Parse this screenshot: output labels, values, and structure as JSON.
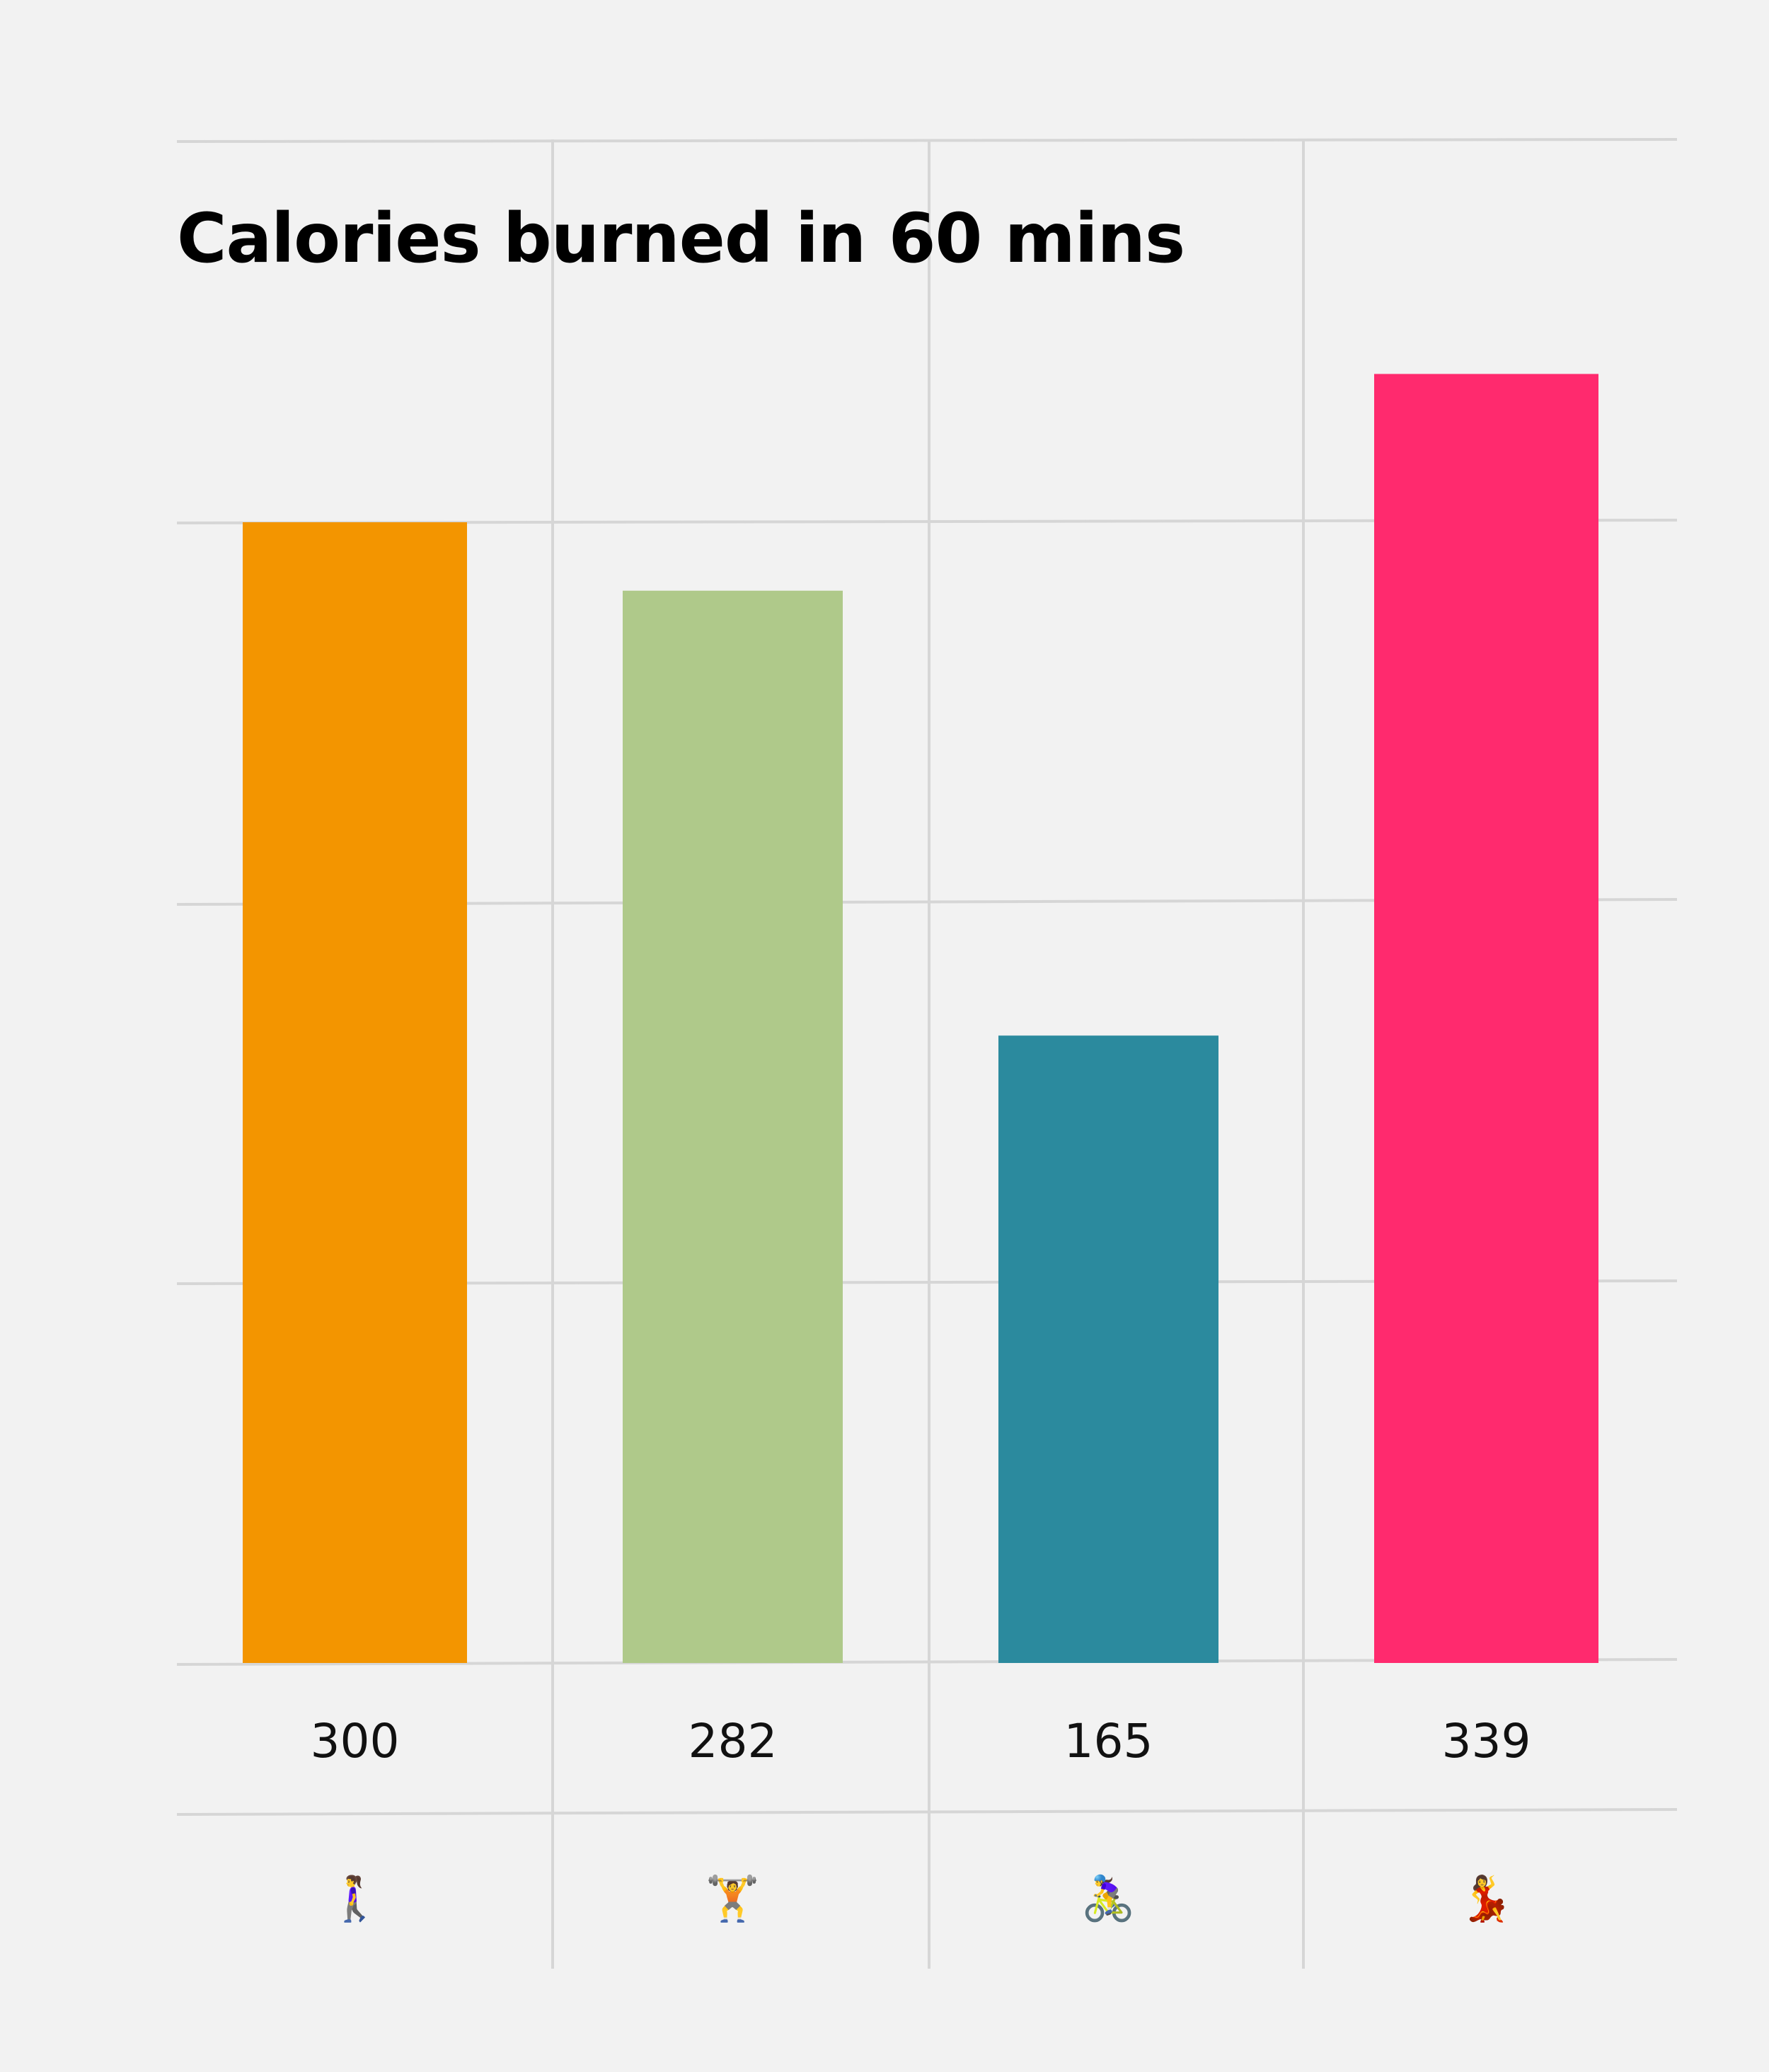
{
  "chart_data": {
    "type": "bar",
    "title": "Calories burned in 60 mins",
    "xlabel": "",
    "ylabel": "",
    "categories": [
      "walking-icon",
      "weightlifting-icon",
      "cycling-icon",
      "dancing-icon"
    ],
    "values": [
      300,
      282,
      165,
      339
    ],
    "value_labels": [
      "300",
      "282",
      "165",
      "339"
    ],
    "icons": [
      "🚶‍♀️",
      "🏋️",
      "🚴‍♀️",
      "💃"
    ],
    "colors": [
      "#f39500",
      "#afc98a",
      "#2b8a9e",
      "#ff2a6e"
    ],
    "ylim": [
      0,
      300
    ],
    "grid": true,
    "legend": "none"
  }
}
